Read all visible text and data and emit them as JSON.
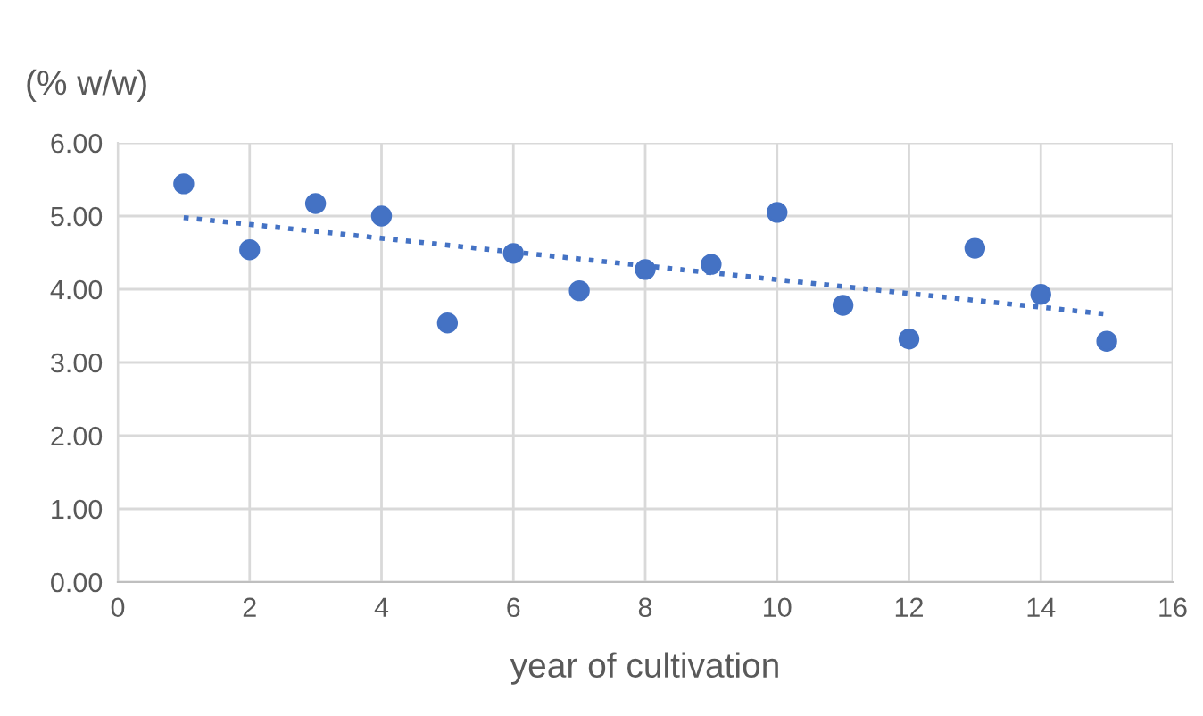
{
  "chart_data": {
    "type": "scatter",
    "ylabel": "(% w/w)",
    "xlabel": "year of cultivation",
    "series": [
      {
        "color": "#4472c4",
        "marker": "circle",
        "x": [
          1,
          2,
          3,
          4,
          5,
          6,
          7,
          8,
          9,
          10,
          11,
          12,
          13,
          14,
          15
        ],
        "values": [
          5.44,
          4.54,
          5.17,
          5.0,
          3.54,
          4.49,
          3.98,
          4.27,
          4.34,
          5.05,
          3.78,
          3.32,
          4.56,
          3.93,
          3.29
        ]
      },
      {
        "type": "line",
        "color": "#4472c4",
        "line_style": "dotted",
        "marker": "none",
        "x": [
          1,
          15
        ],
        "values": [
          4.98,
          3.66
        ]
      }
    ],
    "xlim": [
      0,
      16
    ],
    "ylim": [
      0,
      6
    ],
    "xticks": [
      0,
      2,
      4,
      6,
      8,
      10,
      12,
      14,
      16
    ],
    "yticks": [
      {
        "value": 0,
        "label": "0.00"
      },
      {
        "value": 1,
        "label": "1.00"
      },
      {
        "value": 2,
        "label": "2.00"
      },
      {
        "value": 3,
        "label": "3.00"
      },
      {
        "value": 4,
        "label": "4.00"
      },
      {
        "value": 5,
        "label": "5.00"
      },
      {
        "value": 6,
        "label": "6.00"
      }
    ],
    "grid": true,
    "legend": false
  }
}
